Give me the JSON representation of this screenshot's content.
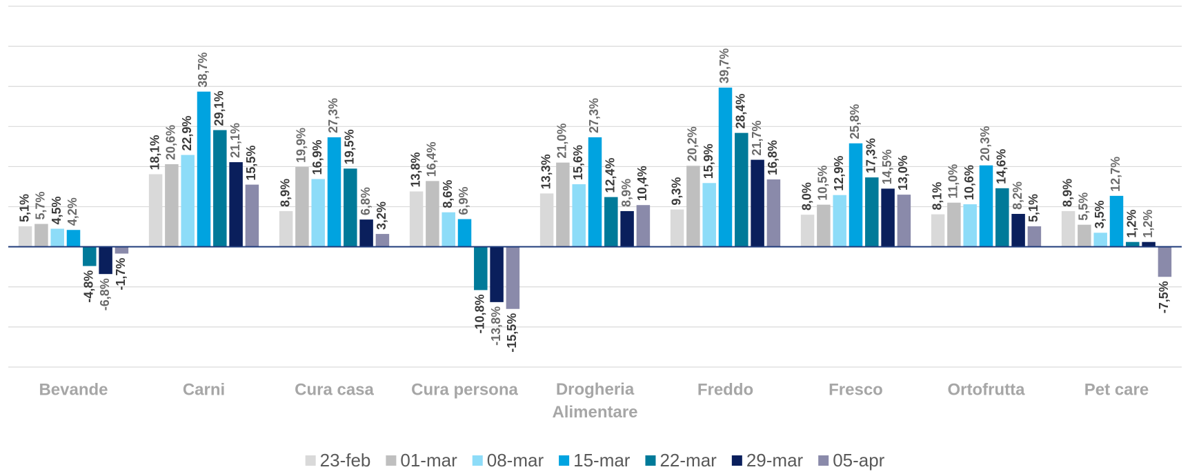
{
  "chart_data": {
    "type": "bar",
    "categories": [
      "Bevande",
      "Carni",
      "Cura casa",
      "Cura persona",
      "Drogheria Alimentare",
      "Freddo",
      "Fresco",
      "Ortofrutta",
      "Pet care"
    ],
    "series": [
      {
        "name": "23-feb",
        "color": "#d9d9d9",
        "values": [
          5.1,
          18.1,
          8.9,
          13.8,
          13.3,
          9.3,
          8.0,
          8.1,
          8.9
        ],
        "value_labels": [
          "5,1%",
          "18,1%",
          "8,9%",
          "13,8%",
          "13,3%",
          "9,3%",
          "8,0%",
          "8,1%",
          "8,9%"
        ]
      },
      {
        "name": "01-mar",
        "color": "#bfbfbf",
        "values": [
          5.7,
          20.6,
          19.9,
          16.4,
          21.0,
          20.2,
          10.5,
          11.0,
          5.5
        ],
        "value_labels": [
          "5,7%",
          "20,6%",
          "19,9%",
          "16,4%",
          "21,0%",
          "20,2%",
          "10,5%",
          "11,0%",
          "5,5%"
        ]
      },
      {
        "name": "08-mar",
        "color": "#8ddcf8",
        "values": [
          4.5,
          22.9,
          16.9,
          8.6,
          15.6,
          15.9,
          12.9,
          10.6,
          3.5
        ],
        "value_labels": [
          "4,5%",
          "22,9%",
          "16,9%",
          "8,6%",
          "15,6%",
          "15,9%",
          "12,9%",
          "10,6%",
          "3,5%"
        ]
      },
      {
        "name": "15-mar",
        "color": "#00a3e0",
        "values": [
          4.2,
          38.7,
          27.3,
          6.9,
          27.3,
          39.7,
          25.8,
          20.3,
          12.7
        ],
        "value_labels": [
          "4,2%",
          "38,7%",
          "27,3%",
          "6,9%",
          "27,3%",
          "39,7%",
          "25,8%",
          "20,3%",
          "12,7%"
        ]
      },
      {
        "name": "22-mar",
        "color": "#007a99",
        "values": [
          -4.8,
          29.1,
          19.5,
          -10.8,
          12.4,
          28.4,
          17.3,
          14.6,
          1.2
        ],
        "value_labels": [
          "-4,8%",
          "29,1%",
          "19,5%",
          "-10,8%",
          "12,4%",
          "28,4%",
          "17,3%",
          "14,6%",
          "1,2%"
        ]
      },
      {
        "name": "29-mar",
        "color": "#0a1f5c",
        "values": [
          -6.8,
          21.1,
          6.8,
          -13.8,
          8.9,
          21.7,
          14.5,
          8.2,
          1.2
        ],
        "value_labels": [
          "-6,8%",
          "21,1%",
          "6,8%",
          "-13,8%",
          "8,9%",
          "21,7%",
          "14,5%",
          "8,2%",
          "1,2%"
        ]
      },
      {
        "name": "05-apr",
        "color": "#8a8aaa",
        "values": [
          -1.7,
          15.5,
          3.2,
          -15.5,
          10.4,
          16.8,
          13.0,
          5.1,
          -7.5
        ],
        "value_labels": [
          "-1,7%",
          "15,5%",
          "3,2%",
          "-15,5%",
          "10,4%",
          "16,8%",
          "13,0%",
          "5,1%",
          "-7,5%"
        ]
      }
    ],
    "ylim": [
      -30,
      60
    ],
    "yticks": [
      -30,
      -20,
      -10,
      0,
      10,
      20,
      30,
      40,
      50,
      60
    ],
    "grid": true
  }
}
